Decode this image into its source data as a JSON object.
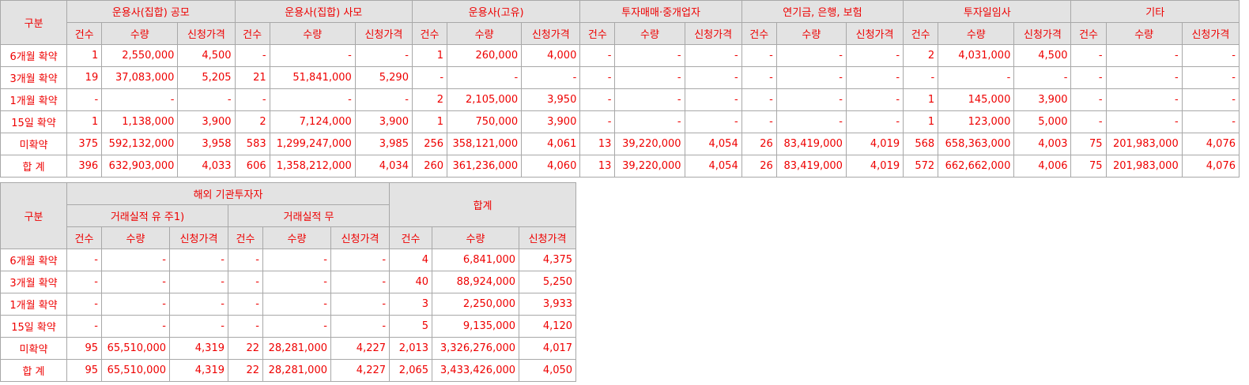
{
  "table1": {
    "corner": "구분",
    "groups": [
      "운용사(집합) 공모",
      "운용사(집합) 사모",
      "운용사(고유)",
      "투자매매·중개업자",
      "연기금, 은행, 보험",
      "투자일임사",
      "기타"
    ],
    "sub": [
      "건수",
      "수량",
      "신청가격"
    ],
    "rows": [
      {
        "label": "6개월 확약",
        "cells": [
          "1",
          "2,550,000",
          "4,500",
          "-",
          "-",
          "-",
          "1",
          "260,000",
          "4,000",
          "-",
          "-",
          "-",
          "-",
          "-",
          "-",
          "2",
          "4,031,000",
          "4,500",
          "-",
          "-",
          "-"
        ]
      },
      {
        "label": "3개월 확약",
        "cells": [
          "19",
          "37,083,000",
          "5,205",
          "21",
          "51,841,000",
          "5,290",
          "-",
          "-",
          "-",
          "-",
          "-",
          "-",
          "-",
          "-",
          "-",
          "-",
          "-",
          "-",
          "-",
          "-",
          "-"
        ]
      },
      {
        "label": "1개월 확약",
        "cells": [
          "-",
          "-",
          "-",
          "-",
          "-",
          "-",
          "2",
          "2,105,000",
          "3,950",
          "-",
          "-",
          "-",
          "-",
          "-",
          "-",
          "1",
          "145,000",
          "3,900",
          "-",
          "-",
          "-"
        ]
      },
      {
        "label": "15일 확약",
        "cells": [
          "1",
          "1,138,000",
          "3,900",
          "2",
          "7,124,000",
          "3,900",
          "1",
          "750,000",
          "3,900",
          "-",
          "-",
          "-",
          "-",
          "-",
          "-",
          "1",
          "123,000",
          "5,000",
          "-",
          "-",
          "-"
        ]
      },
      {
        "label": "미확약",
        "cells": [
          "375",
          "592,132,000",
          "3,958",
          "583",
          "1,299,247,000",
          "3,985",
          "256",
          "358,121,000",
          "4,061",
          "13",
          "39,220,000",
          "4,054",
          "26",
          "83,419,000",
          "4,019",
          "568",
          "658,363,000",
          "4,003",
          "75",
          "201,983,000",
          "4,076"
        ]
      },
      {
        "label": "합 계",
        "cells": [
          "396",
          "632,903,000",
          "4,033",
          "606",
          "1,358,212,000",
          "4,034",
          "260",
          "361,236,000",
          "4,060",
          "13",
          "39,220,000",
          "4,054",
          "26",
          "83,419,000",
          "4,019",
          "572",
          "662,662,000",
          "4,006",
          "75",
          "201,983,000",
          "4,076"
        ]
      }
    ]
  },
  "table2": {
    "corner": "구분",
    "group": "해외 기관투자자",
    "subgroups": [
      "거래실적 유 주1)",
      "거래실적 무"
    ],
    "total": "합계",
    "sub": [
      "건수",
      "수량",
      "신청가격"
    ],
    "rows": [
      {
        "label": "6개월 확약",
        "cells": [
          "-",
          "-",
          "-",
          "-",
          "-",
          "-",
          "4",
          "6,841,000",
          "4,375"
        ]
      },
      {
        "label": "3개월 확약",
        "cells": [
          "-",
          "-",
          "-",
          "-",
          "-",
          "-",
          "40",
          "88,924,000",
          "5,250"
        ]
      },
      {
        "label": "1개월 확약",
        "cells": [
          "-",
          "-",
          "-",
          "-",
          "-",
          "-",
          "3",
          "2,250,000",
          "3,933"
        ]
      },
      {
        "label": "15일 확약",
        "cells": [
          "-",
          "-",
          "-",
          "-",
          "-",
          "-",
          "5",
          "9,135,000",
          "4,120"
        ]
      },
      {
        "label": "미확약",
        "cells": [
          "95",
          "65,510,000",
          "4,319",
          "22",
          "28,281,000",
          "4,227",
          "2,013",
          "3,326,276,000",
          "4,017"
        ]
      },
      {
        "label": "합 계",
        "cells": [
          "95",
          "65,510,000",
          "4,319",
          "22",
          "28,281,000",
          "4,227",
          "2,065",
          "3,433,426,000",
          "4,050"
        ]
      }
    ]
  }
}
